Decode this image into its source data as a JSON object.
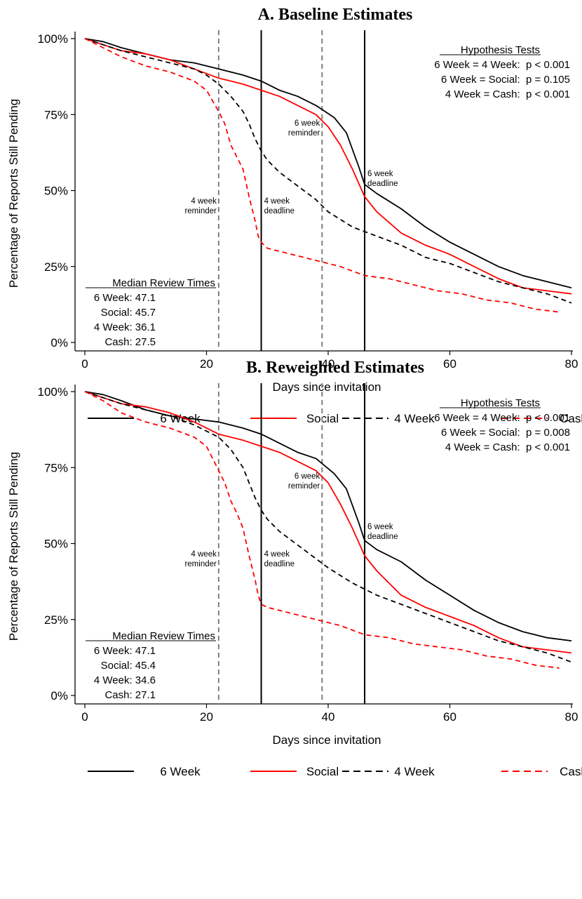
{
  "chart_data": [
    {
      "type": "line",
      "title": "A.  Baseline Estimates",
      "xlabel": "Days since invitation",
      "ylabel": "Percentage of Reports Still Pending",
      "xlim": [
        0,
        80
      ],
      "ylim": [
        0,
        100
      ],
      "xticks": [
        "0",
        "20",
        "40",
        "60",
        "80"
      ],
      "yticks": [
        "0%",
        "25%",
        "50%",
        "75%",
        "100%"
      ],
      "grid": false,
      "legend_position": "bottom",
      "vlines": [
        {
          "x": 22,
          "style": "dashed-gray",
          "label": [
            "4 week",
            "reminder"
          ]
        },
        {
          "x": 29,
          "style": "solid-black",
          "label": [
            "4 week",
            "deadline"
          ]
        },
        {
          "x": 39,
          "style": "dashed-gray",
          "label": [
            "6 week",
            "reminder"
          ]
        },
        {
          "x": 46,
          "style": "solid-black",
          "label": [
            "6 week",
            "deadline"
          ]
        }
      ],
      "hypothesis_tests": {
        "header": "Hypothesis Tests",
        "rows": [
          "6 Week = 4 Week:  p < 0.001",
          "6 Week = Social:  p = 0.105",
          "4 Week = Cash:  p < 0.001"
        ]
      },
      "median_review_times": {
        "header": "Median Review Times",
        "rows": [
          "6 Week: 47.1",
          "Social: 45.7",
          "4 Week: 36.1",
          "Cash: 27.5"
        ]
      },
      "series": [
        {
          "name": "6 Week",
          "color": "#000000",
          "dashed": false,
          "x": [
            0,
            3,
            6,
            10,
            14,
            18,
            22,
            26,
            29,
            32,
            35,
            38,
            41,
            43,
            45,
            46,
            48,
            52,
            56,
            60,
            64,
            68,
            72,
            76,
            80
          ],
          "y": [
            100,
            99,
            97,
            95,
            93,
            92,
            90,
            88,
            86,
            83,
            81,
            78,
            74,
            69,
            58,
            52,
            49,
            44,
            38,
            33,
            29,
            25,
            22,
            20,
            18
          ]
        },
        {
          "name": "Social",
          "color": "#ff0000",
          "dashed": false,
          "x": [
            0,
            3,
            6,
            10,
            14,
            18,
            22,
            26,
            29,
            32,
            35,
            38,
            40,
            42,
            44,
            46,
            48,
            52,
            56,
            60,
            64,
            68,
            72,
            76,
            80
          ],
          "y": [
            100,
            98,
            96,
            95,
            93,
            90,
            87,
            85,
            83,
            81,
            78,
            75,
            71,
            65,
            57,
            48,
            43,
            36,
            32,
            29,
            25,
            21,
            18,
            17,
            16
          ]
        },
        {
          "name": "4 Week",
          "color": "#000000",
          "dashed": true,
          "x": [
            0,
            3,
            6,
            10,
            14,
            18,
            20,
            22,
            24,
            26,
            27,
            28,
            29,
            30,
            32,
            34,
            36,
            38,
            40,
            44,
            48,
            52,
            56,
            60,
            64,
            68,
            72,
            76,
            80
          ],
          "y": [
            100,
            98,
            96,
            94,
            92,
            90,
            88,
            85,
            81,
            76,
            72,
            67,
            63,
            60,
            56,
            53,
            50,
            47,
            43,
            38,
            35,
            32,
            28,
            26,
            23,
            20,
            18,
            16,
            13
          ]
        },
        {
          "name": "Cash",
          "color": "#ff0000",
          "dashed": true,
          "x": [
            0,
            3,
            6,
            10,
            14,
            18,
            20,
            22,
            23,
            24,
            25,
            26,
            27,
            28,
            28.5,
            29,
            30,
            34,
            38,
            42,
            46,
            50,
            54,
            58,
            62,
            66,
            70,
            74,
            78
          ],
          "y": [
            100,
            97,
            94,
            91,
            89,
            86,
            83,
            76,
            72,
            65,
            61,
            57,
            48,
            40,
            35,
            33,
            31,
            29,
            27,
            25,
            22,
            21,
            19,
            17,
            16,
            14,
            13,
            11,
            10
          ]
        }
      ]
    },
    {
      "type": "line",
      "title": "B.  Reweighted Estimates",
      "xlabel": "Days since invitation",
      "ylabel": "Percentage of Reports Still Pending",
      "xlim": [
        0,
        80
      ],
      "ylim": [
        0,
        100
      ],
      "xticks": [
        "0",
        "20",
        "40",
        "60",
        "80"
      ],
      "yticks": [
        "0%",
        "25%",
        "50%",
        "75%",
        "100%"
      ],
      "grid": false,
      "legend_position": "bottom",
      "vlines": [
        {
          "x": 22,
          "style": "dashed-gray",
          "label": [
            "4 week",
            "reminder"
          ]
        },
        {
          "x": 29,
          "style": "solid-black",
          "label": [
            "4 week",
            "deadline"
          ]
        },
        {
          "x": 39,
          "style": "dashed-gray",
          "label": [
            "6 week",
            "reminder"
          ]
        },
        {
          "x": 46,
          "style": "solid-black",
          "label": [
            "6 week",
            "deadline"
          ]
        }
      ],
      "hypothesis_tests": {
        "header": "Hypothesis Tests",
        "rows": [
          "6 Week = 4 Week:  p < 0.001",
          "6 Week = Social:  p = 0.008",
          "4 Week = Cash:  p < 0.001"
        ]
      },
      "median_review_times": {
        "header": "Median Review Times",
        "rows": [
          "6 Week: 47.1",
          "Social: 45.4",
          "4 Week: 34.6",
          "Cash: 27.1"
        ]
      },
      "series": [
        {
          "name": "6 Week",
          "color": "#000000",
          "dashed": false,
          "x": [
            0,
            3,
            6,
            10,
            14,
            18,
            22,
            26,
            29,
            32,
            35,
            38,
            41,
            43,
            45,
            46,
            48,
            52,
            56,
            60,
            64,
            68,
            72,
            76,
            80
          ],
          "y": [
            100,
            99,
            97,
            94,
            92,
            91,
            90,
            88,
            86,
            83,
            80,
            78,
            73,
            68,
            57,
            51,
            48,
            44,
            38,
            33,
            28,
            24,
            21,
            19,
            18
          ]
        },
        {
          "name": "Social",
          "color": "#ff0000",
          "dashed": false,
          "x": [
            0,
            3,
            6,
            10,
            14,
            18,
            22,
            26,
            29,
            32,
            35,
            38,
            40,
            42,
            44,
            46,
            48,
            52,
            56,
            60,
            64,
            68,
            72,
            76,
            80
          ],
          "y": [
            100,
            98,
            96,
            95,
            93,
            90,
            86,
            84,
            82,
            80,
            77,
            74,
            70,
            63,
            55,
            46,
            41,
            33,
            29,
            26,
            23,
            19,
            16,
            15,
            14
          ]
        },
        {
          "name": "4 Week",
          "color": "#000000",
          "dashed": true,
          "x": [
            0,
            3,
            6,
            10,
            14,
            18,
            20,
            22,
            24,
            26,
            27,
            28,
            29,
            30,
            32,
            34,
            36,
            38,
            40,
            44,
            48,
            52,
            56,
            60,
            64,
            68,
            72,
            76,
            80
          ],
          "y": [
            100,
            98,
            96,
            94,
            92,
            89,
            87,
            85,
            81,
            75,
            70,
            65,
            61,
            58,
            54,
            51,
            48,
            45,
            42,
            37,
            33,
            30,
            27,
            24,
            21,
            18,
            16,
            14,
            11
          ]
        },
        {
          "name": "Cash",
          "color": "#ff0000",
          "dashed": true,
          "x": [
            0,
            3,
            6,
            10,
            14,
            18,
            20,
            22,
            23,
            24,
            25,
            26,
            27,
            28,
            28.5,
            29,
            30,
            34,
            38,
            42,
            46,
            50,
            54,
            58,
            62,
            66,
            70,
            74,
            78
          ],
          "y": [
            100,
            97,
            93,
            90,
            88,
            85,
            82,
            74,
            70,
            64,
            60,
            55,
            46,
            38,
            33,
            30,
            29,
            27,
            25,
            23,
            20,
            19,
            17,
            16,
            15,
            13,
            12,
            10,
            9
          ]
        }
      ]
    }
  ],
  "legend": [
    {
      "label": "6 Week",
      "color": "#000000",
      "dashed": false
    },
    {
      "label": "Social",
      "color": "#ff0000",
      "dashed": false
    },
    {
      "label": "4 Week",
      "color": "#000000",
      "dashed": true
    },
    {
      "label": "Cash",
      "color": "#ff0000",
      "dashed": true
    }
  ]
}
